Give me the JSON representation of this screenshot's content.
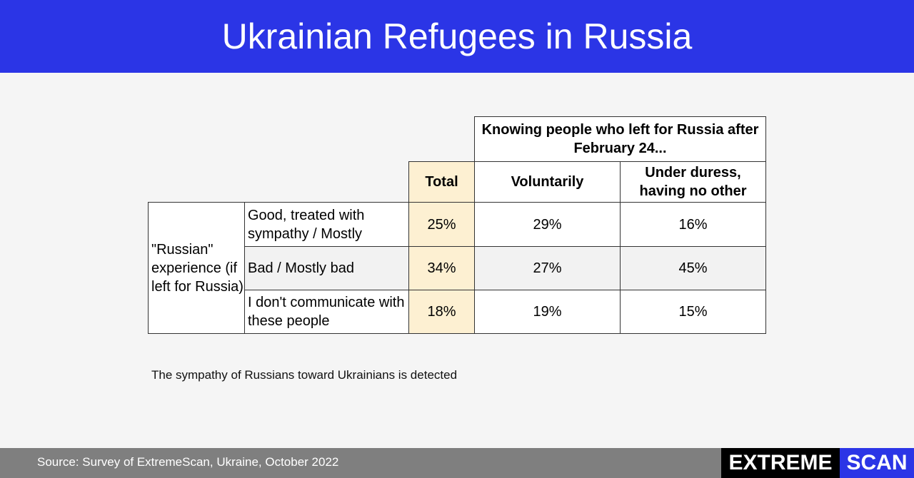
{
  "header": {
    "title": "Ukrainian Refugees in Russia"
  },
  "table": {
    "group_header": "Knowing people who left for Russia after February 24...",
    "columns": [
      "Total",
      "Voluntarily",
      "Under duress, having no other"
    ],
    "row_group": "\"Russian\" experience (if left for Russia)",
    "rows": [
      {
        "label": "Good, treated with sympathy / Mostly",
        "values": [
          "25%",
          "29%",
          "16%"
        ]
      },
      {
        "label": "Bad / Mostly bad",
        "values": [
          "34%",
          "27%",
          "45%"
        ]
      },
      {
        "label": "I don't communicate with these people",
        "values": [
          "18%",
          "19%",
          "15%"
        ]
      }
    ]
  },
  "note": "The sympathy of Russians toward Ukrainians  is detected",
  "footer": {
    "source": "Source: Survey of ExtremeScan, Ukraine,  October 2022",
    "logo": [
      "EXTREME",
      "SCAN"
    ]
  }
}
